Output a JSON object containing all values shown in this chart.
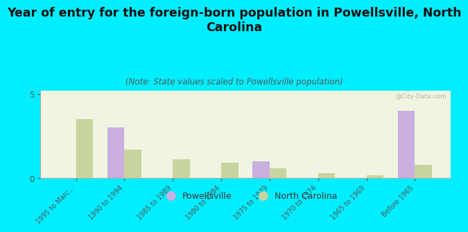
{
  "title": "Year of entry for the foreign-born population in Powellsville, North\nCarolina",
  "subtitle": "(Note: State values scaled to Powellsville population)",
  "categories": [
    "1995 to Marc...",
    "1990 to 1994",
    "1985 to 1989",
    "1980 to 1984",
    "1975 to 1979",
    "1970 to 1974",
    "1965 to 1969",
    "Before 1965"
  ],
  "powellsville_values": [
    0,
    3.0,
    0,
    0,
    1.0,
    0,
    0,
    4.0
  ],
  "nc_values": [
    3.5,
    1.7,
    1.1,
    0.9,
    0.6,
    0.3,
    0.15,
    0.8
  ],
  "powellsville_color": "#c9aee0",
  "nc_color": "#c8d4a0",
  "background_color": "#00eeff",
  "plot_bg_color": "#f0f4e0",
  "ylim": [
    0,
    5.2
  ],
  "yticks": [
    0,
    5
  ],
  "bar_width": 0.35,
  "title_fontsize": 12.5,
  "subtitle_fontsize": 8.5,
  "watermark": "@City-Data.com",
  "legend_powellsville": "Powellsville",
  "legend_nc": "North Carolina"
}
